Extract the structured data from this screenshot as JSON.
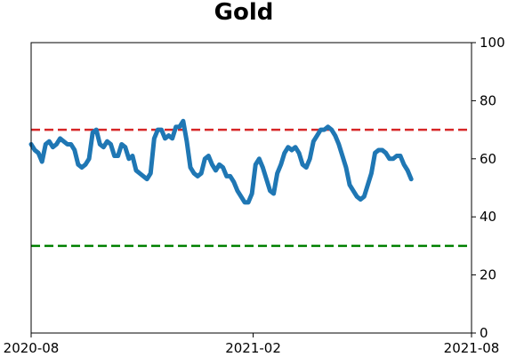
{
  "chart_data": {
    "type": "line",
    "title": "Gold",
    "xlabel": "",
    "ylabel": "",
    "x_range": [
      "2020-08-01",
      "2021-08-01"
    ],
    "ylim": [
      0,
      100
    ],
    "y_axis_side": "right",
    "x_ticks": [
      {
        "date": "2020-08-01",
        "label": "2020-08"
      },
      {
        "date": "2021-02-01",
        "label": "2021-02"
      },
      {
        "date": "2021-08-01",
        "label": "2021-08"
      }
    ],
    "y_ticks": [
      0,
      20,
      40,
      60,
      80,
      100
    ],
    "grid": false,
    "reference_lines": [
      {
        "value": 70,
        "color": "#d62728",
        "style": "dashed"
      },
      {
        "value": 30,
        "color": "#008000",
        "style": "dashed"
      }
    ],
    "series": [
      {
        "color": "#1f77b4",
        "points": [
          [
            "2020-08-01",
            65
          ],
          [
            "2020-08-04",
            63
          ],
          [
            "2020-08-07",
            62
          ],
          [
            "2020-08-10",
            59
          ],
          [
            "2020-08-13",
            65
          ],
          [
            "2020-08-16",
            66
          ],
          [
            "2020-08-19",
            64
          ],
          [
            "2020-08-22",
            65
          ],
          [
            "2020-08-25",
            67
          ],
          [
            "2020-08-28",
            66
          ],
          [
            "2020-08-31",
            65
          ],
          [
            "2020-09-03",
            65
          ],
          [
            "2020-09-06",
            63
          ],
          [
            "2020-09-09",
            58
          ],
          [
            "2020-09-12",
            57
          ],
          [
            "2020-09-15",
            58
          ],
          [
            "2020-09-18",
            60
          ],
          [
            "2020-09-21",
            69
          ],
          [
            "2020-09-24",
            70
          ],
          [
            "2020-09-27",
            65
          ],
          [
            "2020-09-30",
            64
          ],
          [
            "2020-10-03",
            66
          ],
          [
            "2020-10-06",
            65
          ],
          [
            "2020-10-09",
            61
          ],
          [
            "2020-10-12",
            61
          ],
          [
            "2020-10-15",
            65
          ],
          [
            "2020-10-18",
            64
          ],
          [
            "2020-10-21",
            60
          ],
          [
            "2020-10-24",
            61
          ],
          [
            "2020-10-27",
            56
          ],
          [
            "2020-10-30",
            55
          ],
          [
            "2020-11-02",
            54
          ],
          [
            "2020-11-05",
            53
          ],
          [
            "2020-11-08",
            55
          ],
          [
            "2020-11-11",
            67
          ],
          [
            "2020-11-14",
            70
          ],
          [
            "2020-11-17",
            70
          ],
          [
            "2020-11-20",
            67
          ],
          [
            "2020-11-23",
            68
          ],
          [
            "2020-11-26",
            67
          ],
          [
            "2020-11-29",
            71
          ],
          [
            "2020-12-02",
            71
          ],
          [
            "2020-12-05",
            73
          ],
          [
            "2020-12-08",
            66
          ],
          [
            "2020-12-11",
            57
          ],
          [
            "2020-12-14",
            55
          ],
          [
            "2020-12-17",
            54
          ],
          [
            "2020-12-20",
            55
          ],
          [
            "2020-12-23",
            60
          ],
          [
            "2020-12-26",
            61
          ],
          [
            "2020-12-29",
            58
          ],
          [
            "2021-01-01",
            56
          ],
          [
            "2021-01-04",
            58
          ],
          [
            "2021-01-07",
            57
          ],
          [
            "2021-01-10",
            54
          ],
          [
            "2021-01-13",
            54
          ],
          [
            "2021-01-16",
            52
          ],
          [
            "2021-01-19",
            49
          ],
          [
            "2021-01-22",
            47
          ],
          [
            "2021-01-25",
            45
          ],
          [
            "2021-01-28",
            45
          ],
          [
            "2021-01-31",
            48
          ],
          [
            "2021-02-03",
            58
          ],
          [
            "2021-02-06",
            60
          ],
          [
            "2021-02-09",
            57
          ],
          [
            "2021-02-12",
            53
          ],
          [
            "2021-02-15",
            49
          ],
          [
            "2021-02-18",
            48
          ],
          [
            "2021-02-21",
            55
          ],
          [
            "2021-02-24",
            58
          ],
          [
            "2021-02-27",
            62
          ],
          [
            "2021-03-02",
            64
          ],
          [
            "2021-03-05",
            63
          ],
          [
            "2021-03-08",
            64
          ],
          [
            "2021-03-11",
            62
          ],
          [
            "2021-03-14",
            58
          ],
          [
            "2021-03-17",
            57
          ],
          [
            "2021-03-20",
            60
          ],
          [
            "2021-03-23",
            66
          ],
          [
            "2021-03-26",
            68
          ],
          [
            "2021-03-29",
            70
          ],
          [
            "2021-04-01",
            70
          ],
          [
            "2021-04-04",
            71
          ],
          [
            "2021-04-07",
            70
          ],
          [
            "2021-04-10",
            68
          ],
          [
            "2021-04-13",
            65
          ],
          [
            "2021-04-16",
            61
          ],
          [
            "2021-04-19",
            57
          ],
          [
            "2021-04-22",
            51
          ],
          [
            "2021-04-25",
            49
          ],
          [
            "2021-04-28",
            47
          ],
          [
            "2021-05-01",
            46
          ],
          [
            "2021-05-04",
            47
          ],
          [
            "2021-05-07",
            51
          ],
          [
            "2021-05-10",
            55
          ],
          [
            "2021-05-13",
            62
          ],
          [
            "2021-05-16",
            63
          ],
          [
            "2021-05-19",
            63
          ],
          [
            "2021-05-22",
            62
          ],
          [
            "2021-05-25",
            60
          ],
          [
            "2021-05-28",
            60
          ],
          [
            "2021-05-31",
            61
          ],
          [
            "2021-06-03",
            61
          ],
          [
            "2021-06-06",
            58
          ],
          [
            "2021-06-09",
            56
          ],
          [
            "2021-06-12",
            53
          ]
        ]
      }
    ]
  }
}
